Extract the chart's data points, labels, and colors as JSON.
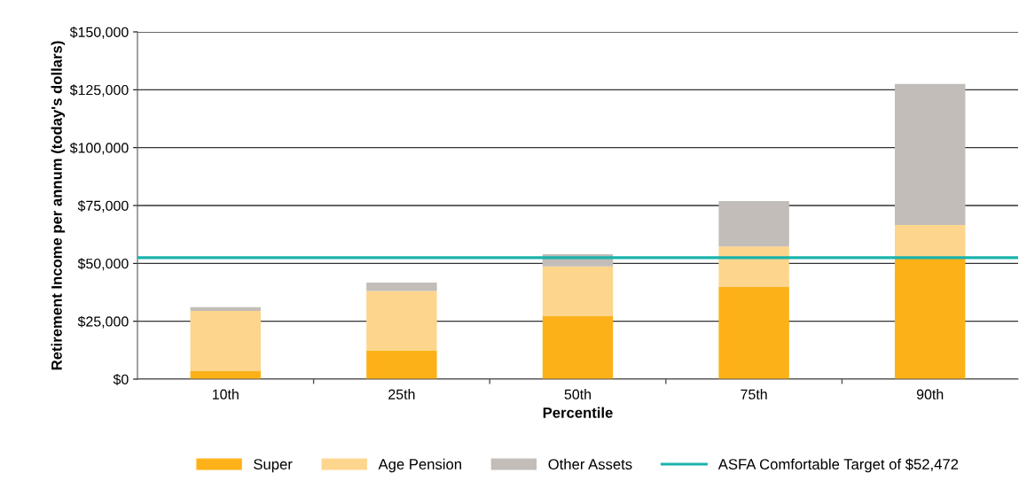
{
  "chart_data": {
    "type": "bar",
    "stacked": true,
    "xlabel": "Percentile",
    "ylabel": "Retirement Income per annum (today's dollars)",
    "categories": [
      "10th",
      "25th",
      "50th",
      "75th",
      "90th"
    ],
    "series": [
      {
        "name": "Super",
        "color": "#fdb118",
        "values": [
          3400,
          12400,
          27200,
          40000,
          52000
        ]
      },
      {
        "name": "Age Pension",
        "color": "#fdd58d",
        "values": [
          26100,
          25700,
          21500,
          17300,
          14600
        ]
      },
      {
        "name": "Other Assets",
        "color": "#c2bdb8",
        "values": [
          1600,
          3600,
          5300,
          19600,
          60900
        ]
      }
    ],
    "ref_lines": [
      {
        "axis": "y",
        "value": 52472,
        "label": "ASFA Comfortable Target of $52,472",
        "color": "#1ab3ab",
        "line_style": "solid"
      }
    ],
    "ylim": [
      0,
      150000
    ],
    "yticks": [
      {
        "value": 0,
        "label": "$0"
      },
      {
        "value": 25000,
        "label": "$25,000"
      },
      {
        "value": 50000,
        "label": "$50,000"
      },
      {
        "value": 75000,
        "label": "$75,000"
      },
      {
        "value": 100000,
        "label": "$100,000"
      },
      {
        "value": 125000,
        "label": "$125,000"
      },
      {
        "value": 150000,
        "label": "$150,000"
      }
    ],
    "grid": "y",
    "legend": "bottom"
  }
}
